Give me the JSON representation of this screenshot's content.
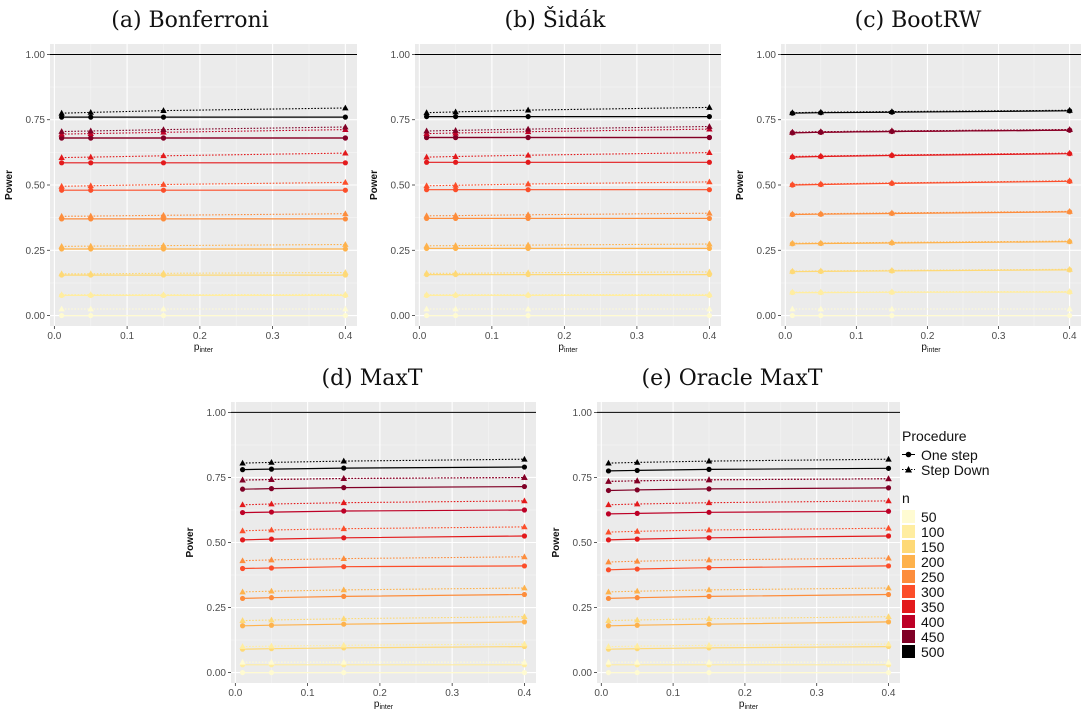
{
  "chart_data": {
    "type": "line",
    "x": [
      0.01,
      0.05,
      0.15,
      0.4
    ],
    "n_levels": [
      "50",
      "100",
      "150",
      "200",
      "250",
      "300",
      "350",
      "400",
      "450",
      "500"
    ],
    "n_colors": [
      "#fffbd2",
      "#ffeda0",
      "#fed976",
      "#feb24c",
      "#fd8d3c",
      "#fc4e2a",
      "#e31a1c",
      "#bd0026",
      "#800026",
      "#000000"
    ],
    "procedures": [
      "One step",
      "Step Down"
    ],
    "reference_line": 1.0,
    "panels": [
      {
        "id": "bonferroni",
        "title": "(a) Bonferroni",
        "xlabel": "p",
        "xlabel_sub": "inter",
        "ylabel": "Power",
        "xlim": [
          0,
          0.41
        ],
        "ylim": [
          0,
          1.0
        ],
        "xticks": [
          "0.0",
          "0.1",
          "0.2",
          "0.3",
          "0.4"
        ],
        "yticks": [
          "0.00",
          "0.25",
          "0.50",
          "0.75",
          "1.00"
        ],
        "one_step": [
          [
            0.0,
            0.0,
            0.0,
            0.0
          ],
          [
            0.077,
            0.077,
            0.077,
            0.077
          ],
          [
            0.155,
            0.155,
            0.155,
            0.155
          ],
          [
            0.255,
            0.255,
            0.255,
            0.255
          ],
          [
            0.37,
            0.37,
            0.37,
            0.37
          ],
          [
            0.48,
            0.48,
            0.48,
            0.48
          ],
          [
            0.585,
            0.585,
            0.585,
            0.585
          ],
          [
            0.68,
            0.68,
            0.68,
            0.68
          ],
          [
            0.68,
            0.68,
            0.68,
            0.68
          ],
          [
            0.76,
            0.76,
            0.76,
            0.76
          ]
        ],
        "step_down": [
          [
            0.025,
            0.025,
            0.025,
            0.025
          ],
          [
            0.08,
            0.08,
            0.08,
            0.081
          ],
          [
            0.16,
            0.16,
            0.162,
            0.165
          ],
          [
            0.265,
            0.266,
            0.268,
            0.272
          ],
          [
            0.38,
            0.381,
            0.384,
            0.39
          ],
          [
            0.495,
            0.497,
            0.502,
            0.51
          ],
          [
            0.605,
            0.607,
            0.612,
            0.622
          ],
          [
            0.695,
            0.697,
            0.702,
            0.712
          ],
          [
            0.705,
            0.707,
            0.712,
            0.722
          ],
          [
            0.775,
            0.778,
            0.785,
            0.795
          ]
        ]
      },
      {
        "id": "sidak",
        "title": "(b) Šidák",
        "xlabel": "p",
        "xlabel_sub": "inter",
        "ylabel": "Power",
        "xlim": [
          0,
          0.41
        ],
        "ylim": [
          0,
          1.0
        ],
        "xticks": [
          "0.0",
          "0.1",
          "0.2",
          "0.3",
          "0.4"
        ],
        "yticks": [
          "0.00",
          "0.25",
          "0.50",
          "0.75",
          "1.00"
        ],
        "one_step": [
          [
            0.0,
            0.0,
            0.0,
            0.0
          ],
          [
            0.077,
            0.077,
            0.077,
            0.077
          ],
          [
            0.157,
            0.157,
            0.157,
            0.157
          ],
          [
            0.257,
            0.257,
            0.257,
            0.257
          ],
          [
            0.372,
            0.372,
            0.372,
            0.372
          ],
          [
            0.482,
            0.482,
            0.482,
            0.482
          ],
          [
            0.587,
            0.587,
            0.587,
            0.587
          ],
          [
            0.682,
            0.682,
            0.682,
            0.682
          ],
          [
            0.682,
            0.682,
            0.682,
            0.682
          ],
          [
            0.762,
            0.762,
            0.762,
            0.762
          ]
        ],
        "step_down": [
          [
            0.025,
            0.025,
            0.025,
            0.025
          ],
          [
            0.08,
            0.08,
            0.08,
            0.081
          ],
          [
            0.162,
            0.162,
            0.164,
            0.167
          ],
          [
            0.267,
            0.268,
            0.27,
            0.274
          ],
          [
            0.382,
            0.383,
            0.386,
            0.392
          ],
          [
            0.497,
            0.499,
            0.504,
            0.512
          ],
          [
            0.607,
            0.609,
            0.614,
            0.624
          ],
          [
            0.697,
            0.699,
            0.704,
            0.714
          ],
          [
            0.707,
            0.709,
            0.714,
            0.724
          ],
          [
            0.777,
            0.78,
            0.787,
            0.797
          ]
        ]
      },
      {
        "id": "bootrw",
        "title": "(c) BootRW",
        "xlabel": "p",
        "xlabel_sub": "inter",
        "ylabel": "Power",
        "xlim": [
          0,
          0.41
        ],
        "ylim": [
          0,
          1.0
        ],
        "xticks": [
          "0.0",
          "0.1",
          "0.2",
          "0.3",
          "0.4"
        ],
        "yticks": [
          "0.00",
          "0.25",
          "0.50",
          "0.75",
          "1.00"
        ],
        "one_step": [
          [
            0.0,
            0.0,
            0.0,
            0.0
          ],
          [
            0.088,
            0.088,
            0.089,
            0.09
          ],
          [
            0.168,
            0.169,
            0.171,
            0.175
          ],
          [
            0.275,
            0.276,
            0.278,
            0.283
          ],
          [
            0.387,
            0.388,
            0.391,
            0.397
          ],
          [
            0.5,
            0.502,
            0.506,
            0.514
          ],
          [
            0.607,
            0.609,
            0.613,
            0.62
          ],
          [
            0.7,
            0.702,
            0.705,
            0.71
          ],
          [
            0.7,
            0.702,
            0.705,
            0.71
          ],
          [
            0.775,
            0.777,
            0.779,
            0.784
          ]
        ],
        "step_down": [
          [
            0.025,
            0.025,
            0.025,
            0.025
          ],
          [
            0.09,
            0.09,
            0.091,
            0.092
          ],
          [
            0.17,
            0.171,
            0.173,
            0.177
          ],
          [
            0.277,
            0.278,
            0.28,
            0.285
          ],
          [
            0.389,
            0.39,
            0.393,
            0.399
          ],
          [
            0.502,
            0.504,
            0.508,
            0.516
          ],
          [
            0.609,
            0.611,
            0.615,
            0.622
          ],
          [
            0.702,
            0.704,
            0.707,
            0.712
          ],
          [
            0.702,
            0.704,
            0.707,
            0.712
          ],
          [
            0.777,
            0.779,
            0.781,
            0.786
          ]
        ]
      },
      {
        "id": "maxt",
        "title": "(d) MaxT",
        "xlabel": "p",
        "xlabel_sub": "inter",
        "ylabel": "Power",
        "xlim": [
          0,
          0.41
        ],
        "ylim": [
          0,
          1.0
        ],
        "xticks": [
          "0.0",
          "0.1",
          "0.2",
          "0.3",
          "0.4"
        ],
        "yticks": [
          "0.00",
          "0.25",
          "0.50",
          "0.75",
          "1.00"
        ],
        "one_step": [
          [
            0.0,
            0.0,
            0.0,
            0.0
          ],
          [
            0.03,
            0.03,
            0.03,
            0.03
          ],
          [
            0.09,
            0.092,
            0.095,
            0.1
          ],
          [
            0.18,
            0.182,
            0.186,
            0.195
          ],
          [
            0.285,
            0.288,
            0.293,
            0.3
          ],
          [
            0.4,
            0.402,
            0.407,
            0.41
          ],
          [
            0.51,
            0.513,
            0.518,
            0.525
          ],
          [
            0.615,
            0.617,
            0.621,
            0.625
          ],
          [
            0.705,
            0.707,
            0.711,
            0.715
          ],
          [
            0.78,
            0.782,
            0.786,
            0.79
          ]
        ],
        "step_down": [
          [
            0.04,
            0.04,
            0.04,
            0.04
          ],
          [
            0.1,
            0.102,
            0.105,
            0.11
          ],
          [
            0.2,
            0.202,
            0.207,
            0.215
          ],
          [
            0.31,
            0.313,
            0.318,
            0.325
          ],
          [
            0.43,
            0.433,
            0.438,
            0.445
          ],
          [
            0.545,
            0.548,
            0.553,
            0.56
          ],
          [
            0.645,
            0.648,
            0.653,
            0.66
          ],
          [
            0.74,
            0.742,
            0.746,
            0.75
          ],
          [
            0.74,
            0.742,
            0.746,
            0.75
          ],
          [
            0.805,
            0.808,
            0.813,
            0.82
          ]
        ]
      },
      {
        "id": "oracle-maxt",
        "title": "(e) Oracle MaxT",
        "xlabel": "p",
        "xlabel_sub": "inter",
        "ylabel": "Power",
        "xlim": [
          0,
          0.41
        ],
        "ylim": [
          0,
          1.0
        ],
        "xticks": [
          "0.0",
          "0.1",
          "0.2",
          "0.3",
          "0.4"
        ],
        "yticks": [
          "0.00",
          "0.25",
          "0.50",
          "0.75",
          "1.00"
        ],
        "one_step": [
          [
            0.0,
            0.0,
            0.0,
            0.0
          ],
          [
            0.03,
            0.03,
            0.03,
            0.03
          ],
          [
            0.09,
            0.092,
            0.095,
            0.1
          ],
          [
            0.18,
            0.182,
            0.186,
            0.195
          ],
          [
            0.285,
            0.288,
            0.293,
            0.3
          ],
          [
            0.395,
            0.398,
            0.403,
            0.41
          ],
          [
            0.51,
            0.513,
            0.518,
            0.525
          ],
          [
            0.61,
            0.612,
            0.616,
            0.62
          ],
          [
            0.7,
            0.702,
            0.706,
            0.71
          ],
          [
            0.775,
            0.777,
            0.781,
            0.785
          ]
        ],
        "step_down": [
          [
            0.04,
            0.04,
            0.04,
            0.04
          ],
          [
            0.1,
            0.102,
            0.105,
            0.11
          ],
          [
            0.2,
            0.202,
            0.207,
            0.215
          ],
          [
            0.31,
            0.313,
            0.318,
            0.325
          ],
          [
            0.425,
            0.428,
            0.433,
            0.44
          ],
          [
            0.54,
            0.543,
            0.548,
            0.555
          ],
          [
            0.645,
            0.648,
            0.653,
            0.66
          ],
          [
            0.735,
            0.737,
            0.741,
            0.745
          ],
          [
            0.735,
            0.737,
            0.741,
            0.745
          ],
          [
            0.805,
            0.808,
            0.813,
            0.82
          ]
        ]
      }
    ]
  },
  "legend": {
    "procedure_title": "Procedure",
    "n_title": "n",
    "procedure_labels": [
      "One step",
      "Step Down"
    ],
    "n_labels": [
      "50",
      "100",
      "150",
      "200",
      "250",
      "300",
      "350",
      "400",
      "450",
      "500"
    ]
  }
}
